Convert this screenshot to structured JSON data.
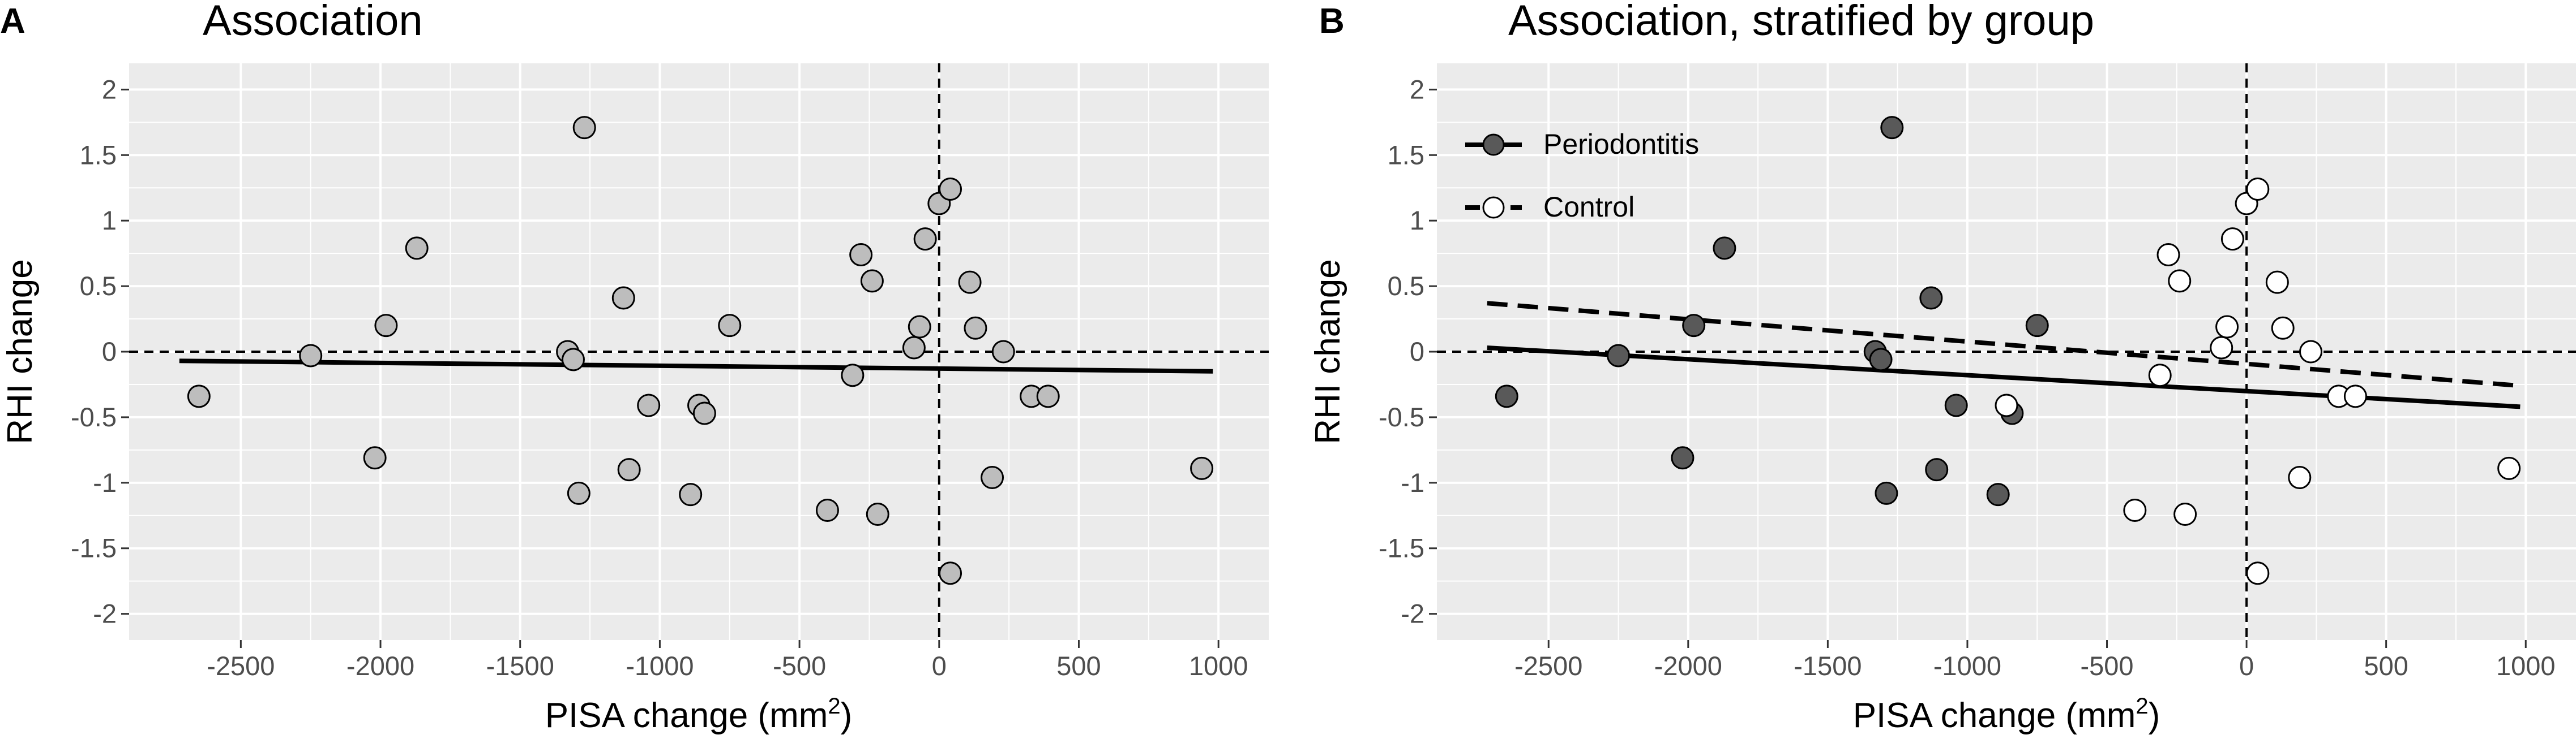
{
  "chart_data": [
    {
      "type": "scatter",
      "panel_label": "A",
      "title": "Association",
      "xlabel_main": "PISA change (mm",
      "xlabel_sup": "2",
      "xlabel_close": ")",
      "ylabel": "RHI change",
      "xlim": [
        -2900,
        1180
      ],
      "ylim": [
        -2.2,
        2.2
      ],
      "x_ticks": [
        -2500,
        -2000,
        -1500,
        -1000,
        -500,
        0,
        500,
        1000
      ],
      "x_tick_labels": [
        "-2500",
        "-2000",
        "-1500",
        "-1000",
        "-500",
        "0",
        "500",
        "1000"
      ],
      "y_ticks": [
        -2,
        -1.5,
        -1,
        -0.5,
        0,
        0.5,
        1,
        1.5,
        2
      ],
      "y_tick_labels": [
        "-2",
        "-1.5",
        "-1",
        "-0.5",
        "0",
        "0.5",
        "1",
        "1.5",
        "2"
      ],
      "reference_lines": {
        "x": 0,
        "y": 0,
        "style": "dashed"
      },
      "points": [
        {
          "x": -2650,
          "y": -0.34
        },
        {
          "x": -2250,
          "y": -0.03
        },
        {
          "x": -2020,
          "y": -0.81
        },
        {
          "x": -1980,
          "y": 0.2
        },
        {
          "x": -1870,
          "y": 0.79
        },
        {
          "x": -1330,
          "y": 0.0
        },
        {
          "x": -1310,
          "y": -0.06
        },
        {
          "x": -1290,
          "y": -1.08
        },
        {
          "x": -1270,
          "y": 1.71
        },
        {
          "x": -1130,
          "y": 0.41
        },
        {
          "x": -1110,
          "y": -0.9
        },
        {
          "x": -1040,
          "y": -0.41
        },
        {
          "x": -890,
          "y": -1.09
        },
        {
          "x": -860,
          "y": -0.41
        },
        {
          "x": -840,
          "y": -0.47
        },
        {
          "x": -750,
          "y": 0.2
        },
        {
          "x": -400,
          "y": -1.21
        },
        {
          "x": -310,
          "y": -0.18
        },
        {
          "x": -280,
          "y": 0.74
        },
        {
          "x": -240,
          "y": 0.54
        },
        {
          "x": -220,
          "y": -1.24
        },
        {
          "x": -90,
          "y": 0.03
        },
        {
          "x": -70,
          "y": 0.19
        },
        {
          "x": -50,
          "y": 0.86
        },
        {
          "x": 0,
          "y": 1.13
        },
        {
          "x": 40,
          "y": -1.69
        },
        {
          "x": 40,
          "y": 1.24
        },
        {
          "x": 110,
          "y": 0.53
        },
        {
          "x": 130,
          "y": 0.18
        },
        {
          "x": 190,
          "y": -0.96
        },
        {
          "x": 230,
          "y": 0.0
        },
        {
          "x": 330,
          "y": -0.34
        },
        {
          "x": 390,
          "y": -0.34
        },
        {
          "x": 940,
          "y": -0.89
        }
      ],
      "point_fill": "#bdbdbd",
      "fit_lines": [
        {
          "name": "Overall",
          "style": "solid",
          "x": [
            -2720,
            980
          ],
          "y": [
            -0.07,
            -0.15
          ]
        }
      ]
    },
    {
      "type": "scatter",
      "panel_label": "B",
      "title": "Association, stratified by group",
      "xlabel_main": "PISA change (mm",
      "xlabel_sup": "2",
      "xlabel_close": ")",
      "ylabel": "RHI change",
      "xlim": [
        -2900,
        1180
      ],
      "ylim": [
        -2.2,
        2.2
      ],
      "x_ticks": [
        -2500,
        -2000,
        -1500,
        -1000,
        -500,
        0,
        500,
        1000
      ],
      "x_tick_labels": [
        "-2500",
        "-2000",
        "-1500",
        "-1000",
        "-500",
        "0",
        "500",
        "1000"
      ],
      "y_ticks": [
        -2,
        -1.5,
        -1,
        -0.5,
        0,
        0.5,
        1,
        1.5,
        2
      ],
      "y_tick_labels": [
        "-2",
        "-1.5",
        "-1",
        "-0.5",
        "0",
        "0.5",
        "1",
        "1.5",
        "2"
      ],
      "reference_lines": {
        "x": 0,
        "y": 0,
        "style": "dashed"
      },
      "legend": {
        "placement": "top-left",
        "entries": [
          {
            "name": "Periodontitis",
            "fill": "#595959",
            "line": "solid"
          },
          {
            "name": "Control",
            "fill": "#ffffff",
            "line": "dashed"
          }
        ]
      },
      "series": [
        {
          "name": "Periodontitis",
          "fill": "#595959",
          "points": [
            {
              "x": -2650,
              "y": -0.34
            },
            {
              "x": -2250,
              "y": -0.03
            },
            {
              "x": -2020,
              "y": -0.81
            },
            {
              "x": -1980,
              "y": 0.2
            },
            {
              "x": -1870,
              "y": 0.79
            },
            {
              "x": -1330,
              "y": 0.0
            },
            {
              "x": -1310,
              "y": -0.06
            },
            {
              "x": -1290,
              "y": -1.08
            },
            {
              "x": -1270,
              "y": 1.71
            },
            {
              "x": -1130,
              "y": 0.41
            },
            {
              "x": -1110,
              "y": -0.9
            },
            {
              "x": -1040,
              "y": -0.41
            },
            {
              "x": -890,
              "y": -1.09
            },
            {
              "x": -840,
              "y": -0.47
            },
            {
              "x": -750,
              "y": 0.2
            }
          ]
        },
        {
          "name": "Control",
          "fill": "#ffffff",
          "points": [
            {
              "x": -860,
              "y": -0.41
            },
            {
              "x": -400,
              "y": -1.21
            },
            {
              "x": -310,
              "y": -0.18
            },
            {
              "x": -280,
              "y": 0.74
            },
            {
              "x": -240,
              "y": 0.54
            },
            {
              "x": -220,
              "y": -1.24
            },
            {
              "x": -90,
              "y": 0.03
            },
            {
              "x": -70,
              "y": 0.19
            },
            {
              "x": -50,
              "y": 0.86
            },
            {
              "x": 0,
              "y": 1.13
            },
            {
              "x": 40,
              "y": -1.69
            },
            {
              "x": 40,
              "y": 1.24
            },
            {
              "x": 110,
              "y": 0.53
            },
            {
              "x": 130,
              "y": 0.18
            },
            {
              "x": 190,
              "y": -0.96
            },
            {
              "x": 230,
              "y": 0.0
            },
            {
              "x": 330,
              "y": -0.34
            },
            {
              "x": 390,
              "y": -0.34
            },
            {
              "x": 940,
              "y": -0.89
            }
          ]
        }
      ],
      "fit_lines": [
        {
          "name": "Periodontitis",
          "style": "solid",
          "x": [
            -2720,
            980
          ],
          "y": [
            0.03,
            -0.42
          ]
        },
        {
          "name": "Control",
          "style": "dashed",
          "x": [
            -2720,
            980
          ],
          "y": [
            0.37,
            -0.26
          ]
        }
      ]
    }
  ],
  "colors": {
    "panel_background": "#ebebeb",
    "grid_major": "#ffffff",
    "point_stroke": "#000000",
    "tick_text": "#4d4d4d"
  }
}
